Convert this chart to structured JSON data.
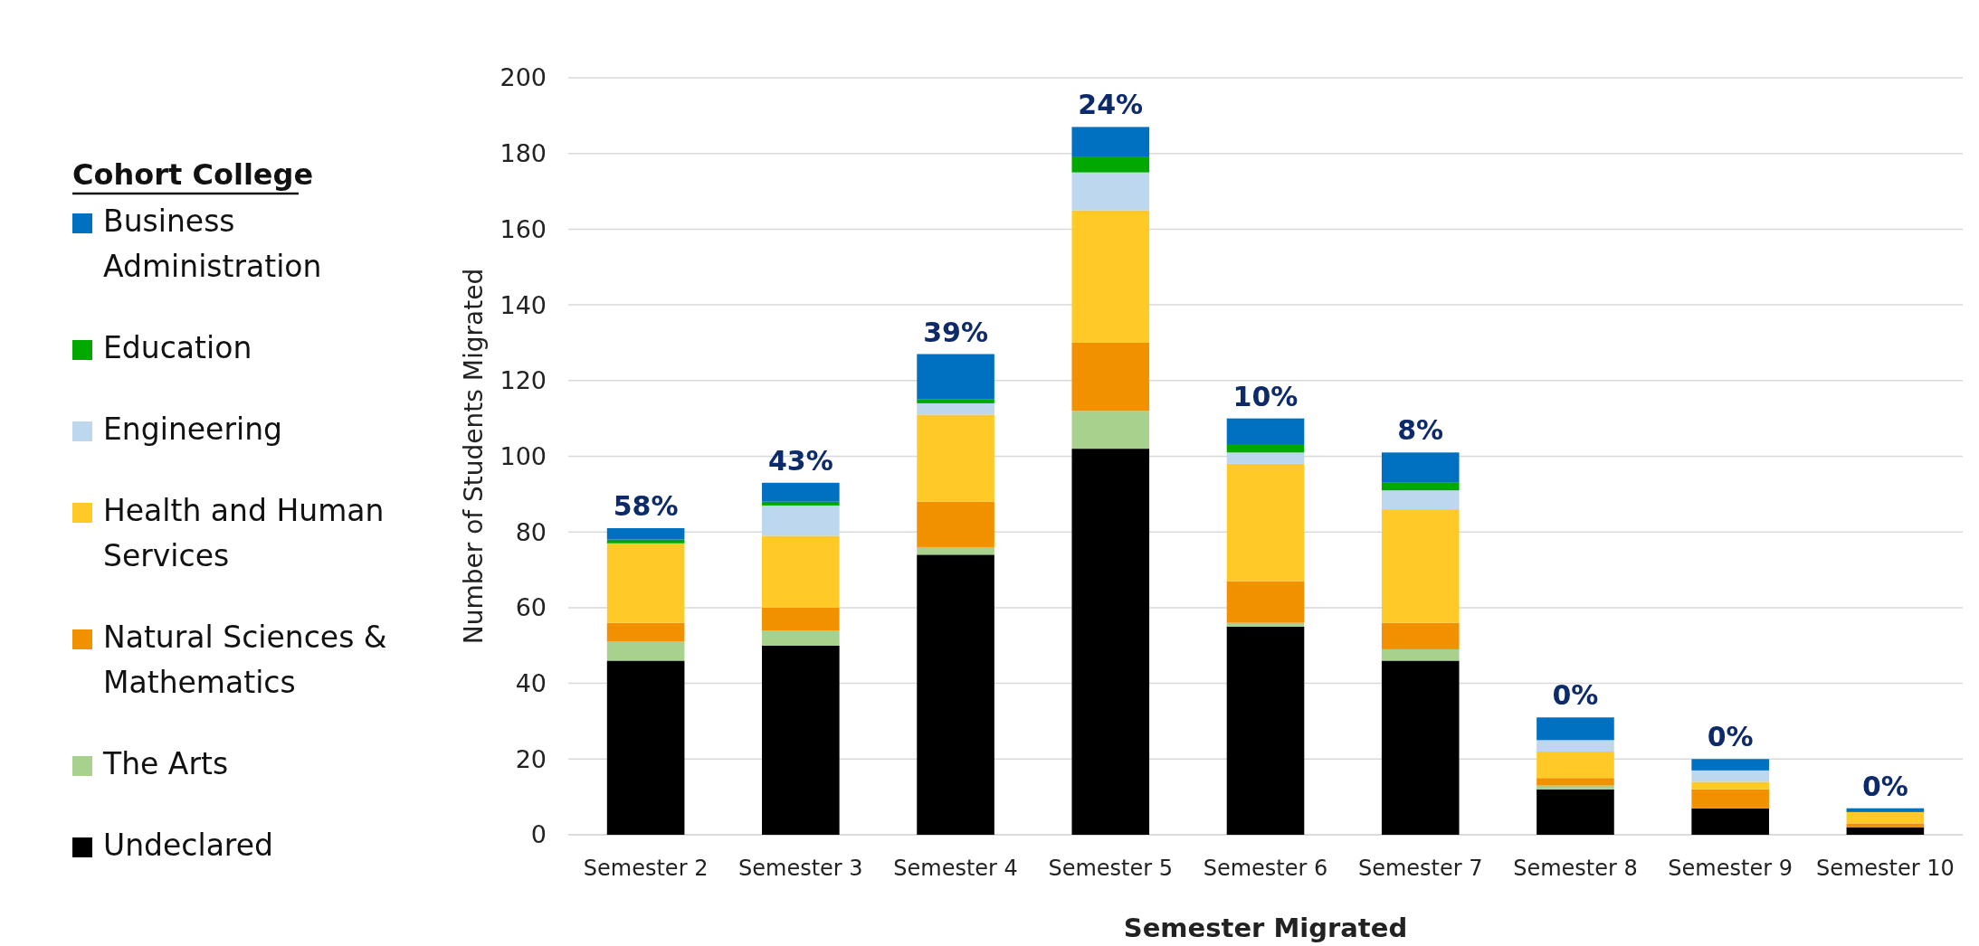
{
  "chart_data": {
    "type": "bar",
    "stacked": true,
    "xlabel": "Semester Migrated",
    "ylabel": "Number of Students Migrated",
    "legend_title": "Cohort College",
    "legend": "left",
    "grid": "y",
    "categories": [
      "Semester 2",
      "Semester 3",
      "Semester 4",
      "Semester 5",
      "Semester 6",
      "Semester 7",
      "Semester 8",
      "Semester 9",
      "Semester 10"
    ],
    "ylim": [
      0,
      200
    ],
    "yticks": [
      0,
      20,
      40,
      60,
      80,
      100,
      120,
      140,
      160,
      180,
      200
    ],
    "series": [
      {
        "name": "Undeclared",
        "color": "#000000",
        "values": [
          46,
          50,
          74,
          102,
          55,
          46,
          12,
          7,
          2
        ]
      },
      {
        "name": "The Arts",
        "color": "#a9d18e",
        "values": [
          5,
          4,
          2,
          10,
          1,
          3,
          1,
          0,
          0
        ]
      },
      {
        "name": "Natural Sciences & Mathematics",
        "color": "#f29100",
        "values": [
          5,
          6,
          12,
          18,
          11,
          7,
          2,
          5,
          1
        ]
      },
      {
        "name": "Health and Human Services",
        "color": "#ffca28",
        "values": [
          21,
          19,
          23,
          35,
          31,
          30,
          7,
          2,
          3
        ]
      },
      {
        "name": "Engineering",
        "color": "#bdd7ee",
        "values": [
          0,
          8,
          3,
          10,
          3,
          5,
          3,
          3,
          0
        ]
      },
      {
        "name": "Education",
        "color": "#00a800",
        "values": [
          1,
          1,
          1,
          4,
          2,
          2,
          0,
          0,
          0
        ]
      },
      {
        "name": "Business Administration",
        "color": "#0070c0",
        "values": [
          3,
          5,
          12,
          8,
          7,
          8,
          6,
          3,
          1
        ]
      }
    ],
    "annotations": [
      {
        "text": "58%",
        "x": "Semester 2",
        "y": 81
      },
      {
        "text": "43%",
        "x": "Semester 3",
        "y": 93
      },
      {
        "text": "39%",
        "x": "Semester 4",
        "y": 127
      },
      {
        "text": "24%",
        "x": "Semester 5",
        "y": 187
      },
      {
        "text": "10%",
        "x": "Semester 6",
        "y": 110
      },
      {
        "text": "8%",
        "x": "Semester 7",
        "y": 101
      },
      {
        "text": "0%",
        "x": "Semester 8",
        "y": 31
      },
      {
        "text": "0%",
        "x": "Semester 9",
        "y": 20
      },
      {
        "text": "0%",
        "x": "Semester 10",
        "y": 7
      }
    ]
  }
}
